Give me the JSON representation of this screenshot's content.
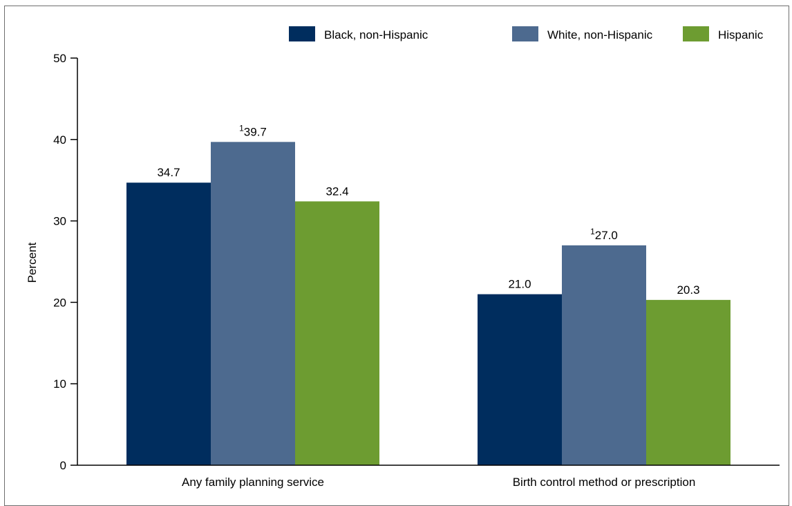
{
  "chart_data": {
    "type": "bar",
    "ylabel": "Percent",
    "ylim": [
      0,
      50
    ],
    "yticks": [
      0,
      10,
      20,
      30,
      40,
      50
    ],
    "categories": [
      "Any family planning service",
      "Birth control method or prescription"
    ],
    "series": [
      {
        "name": "Black, non-Hispanic",
        "color": "#002d5e",
        "values": [
          34.7,
          21.0
        ],
        "labels": [
          "34.7",
          "21.0"
        ],
        "footnotes": [
          "",
          ""
        ]
      },
      {
        "name": "White, non-Hispanic",
        "color": "#4d6a8f",
        "values": [
          39.7,
          27.0
        ],
        "labels": [
          "39.7",
          "27.0"
        ],
        "footnotes": [
          "1",
          "1"
        ]
      },
      {
        "name": "Hispanic",
        "color": "#6d9c31",
        "values": [
          32.4,
          20.3
        ],
        "labels": [
          "32.4",
          "20.3"
        ],
        "footnotes": [
          "",
          ""
        ]
      }
    ],
    "legend_position": "top-right"
  }
}
